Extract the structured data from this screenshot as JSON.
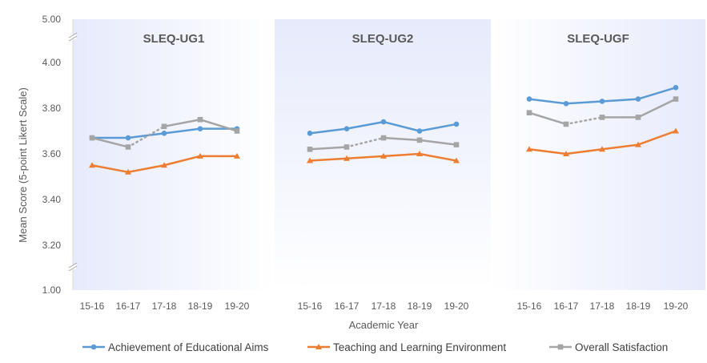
{
  "chart_data": {
    "type": "line",
    "ylabel": "Mean Score (5-point Likert Scale)",
    "xlabel": "Academic Year",
    "y_ticks": [
      "5.00",
      "4.00",
      "3.80",
      "3.60",
      "3.40",
      "3.20",
      "1.00"
    ],
    "y_axis_break": true,
    "categories": [
      "15-16",
      "16-17",
      "17-18",
      "18-19",
      "19-20"
    ],
    "legend_position": "bottom",
    "panels": [
      {
        "title": "SLEQ-UG1",
        "shaded": true,
        "series": [
          {
            "name": "Achievement of Educational Aims",
            "values": [
              3.67,
              3.67,
              3.69,
              3.71,
              3.71
            ],
            "dotted_segments": []
          },
          {
            "name": "Teaching and Learning Environment",
            "values": [
              3.55,
              3.52,
              3.55,
              3.59,
              3.59
            ],
            "dotted_segments": []
          },
          {
            "name": "Overall Satisfaction",
            "values": [
              3.67,
              3.63,
              3.72,
              3.75,
              3.7
            ],
            "dotted_segments": [
              1
            ]
          }
        ]
      },
      {
        "title": "SLEQ-UG2",
        "shaded": true,
        "series": [
          {
            "name": "Achievement of Educational Aims",
            "values": [
              3.69,
              3.71,
              3.74,
              3.7,
              3.73
            ],
            "dotted_segments": []
          },
          {
            "name": "Teaching and Learning Environment",
            "values": [
              3.57,
              3.58,
              3.59,
              3.6,
              3.57
            ],
            "dotted_segments": []
          },
          {
            "name": "Overall Satisfaction",
            "values": [
              3.62,
              3.63,
              3.67,
              3.66,
              3.64
            ],
            "dotted_segments": [
              1
            ]
          }
        ]
      },
      {
        "title": "SLEQ-UGF",
        "shaded": true,
        "series": [
          {
            "name": "Achievement of Educational Aims",
            "values": [
              3.84,
              3.82,
              3.83,
              3.84,
              3.89
            ],
            "dotted_segments": []
          },
          {
            "name": "Teaching and Learning Environment",
            "values": [
              3.62,
              3.6,
              3.62,
              3.64,
              3.7
            ],
            "dotted_segments": []
          },
          {
            "name": "Overall Satisfaction",
            "values": [
              3.78,
              3.73,
              3.76,
              3.76,
              3.84
            ],
            "dotted_segments": [
              1
            ]
          }
        ]
      }
    ],
    "series_styles": [
      {
        "name": "Achievement of Educational Aims",
        "color": "#5B9BD5",
        "marker": "circle"
      },
      {
        "name": "Teaching and Learning Environment",
        "color": "#ED7D31",
        "marker": "triangle"
      },
      {
        "name": "Overall Satisfaction",
        "color": "#A5A5A5",
        "marker": "square"
      }
    ],
    "panel_shade_color": "#E9ECFB"
  }
}
